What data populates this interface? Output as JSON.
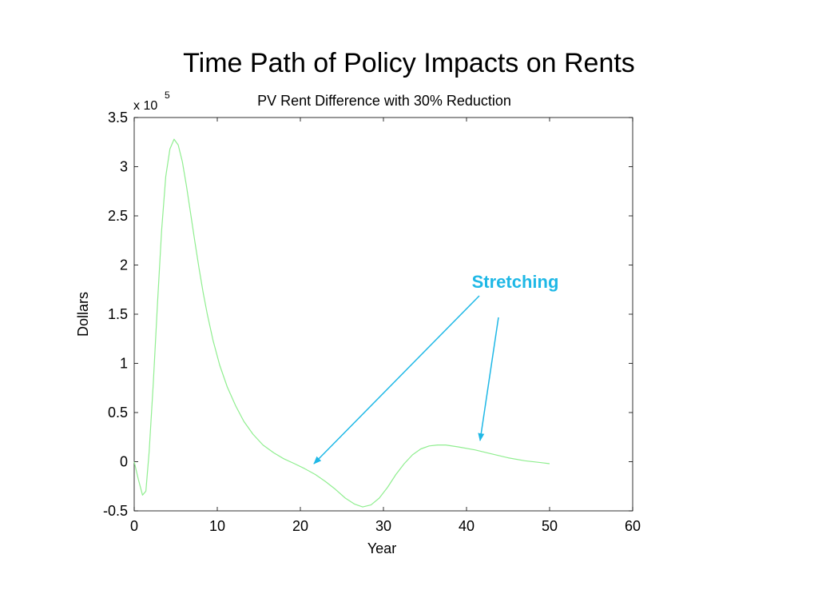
{
  "slide_title": "Time Path of Policy Impacts on Rents",
  "chart_data": {
    "type": "line",
    "title": "PV Rent Difference with 30% Reduction",
    "xlabel": "Year",
    "ylabel": "Dollars",
    "y_multiplier": {
      "base": "x 10",
      "exponent": "5"
    },
    "xlim": [
      0,
      60
    ],
    "ylim": [
      -0.5,
      3.5
    ],
    "x_ticks": [
      0,
      10,
      20,
      30,
      40,
      50,
      60
    ],
    "x_tick_labels": [
      "0",
      "10",
      "20",
      "30",
      "40",
      "50",
      "60"
    ],
    "y_ticks": [
      -0.5,
      0,
      0.5,
      1,
      1.5,
      2,
      2.5,
      3,
      3.5
    ],
    "y_tick_labels": [
      "-0.5",
      "0",
      "0.5",
      "1",
      "1.5",
      "2",
      "2.5",
      "3",
      "3.5"
    ],
    "grid": false,
    "series": [
      {
        "color": "#90ee90",
        "x": [
          0,
          0.5,
          1,
          1.4,
          1.8,
          2.3,
          2.8,
          3.3,
          3.8,
          4.3,
          4.8,
          5.3,
          5.8,
          6.3,
          6.8,
          7.3,
          7.8,
          8.3,
          8.8,
          9.5,
          10.3,
          11.2,
          12.2,
          13.2,
          14.3,
          15.5,
          16.8,
          18,
          19.3,
          20.5,
          21.8,
          23,
          24.2,
          25.4,
          26.5,
          27.5,
          28.5,
          29.5,
          30.5,
          31.5,
          32.5,
          33.5,
          34.5,
          35.5,
          36.5,
          37.5,
          39,
          41,
          43,
          45,
          47,
          49,
          50
        ],
        "y": [
          0,
          -0.18,
          -0.34,
          -0.3,
          0.1,
          0.8,
          1.6,
          2.35,
          2.9,
          3.18,
          3.28,
          3.22,
          3.05,
          2.8,
          2.52,
          2.24,
          1.97,
          1.72,
          1.5,
          1.23,
          0.98,
          0.76,
          0.57,
          0.41,
          0.28,
          0.17,
          0.09,
          0.03,
          -0.02,
          -0.07,
          -0.13,
          -0.2,
          -0.28,
          -0.37,
          -0.43,
          -0.46,
          -0.44,
          -0.37,
          -0.26,
          -0.13,
          -0.02,
          0.07,
          0.13,
          0.16,
          0.17,
          0.17,
          0.15,
          0.12,
          0.08,
          0.04,
          0.01,
          -0.01,
          -0.02
        ]
      }
    ],
    "annotations": [
      {
        "text": "Stretching",
        "color": "#1fb8e6"
      }
    ]
  }
}
